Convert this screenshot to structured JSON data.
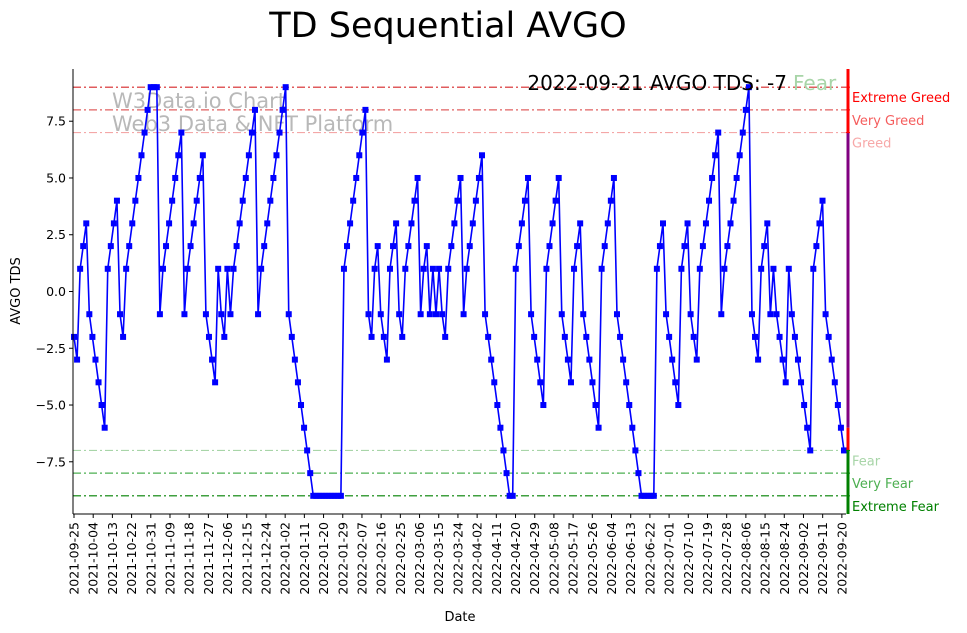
{
  "chart_data": {
    "type": "line",
    "title": "TD Sequential AVGO",
    "xlabel": "Date",
    "ylabel": "AVGO TDS",
    "ylim": [
      -9.8,
      9.8
    ],
    "yticks": [
      -7.5,
      -5.0,
      -2.5,
      0.0,
      2.5,
      5.0,
      7.5
    ],
    "ytick_labels": [
      "−7.5",
      "−5.0",
      "−2.5",
      "0.0",
      "2.5",
      "5.0",
      "7.5"
    ],
    "x_start": "2021-09-25",
    "x_end": "2022-09-21",
    "xtick_labels": [
      "2021-09-25",
      "2021-10-04",
      "2021-10-13",
      "2021-10-22",
      "2021-10-31",
      "2021-11-09",
      "2021-11-18",
      "2021-11-27",
      "2021-12-06",
      "2021-12-15",
      "2021-12-24",
      "2022-01-02",
      "2022-01-11",
      "2022-01-20",
      "2022-01-29",
      "2022-02-07",
      "2022-02-16",
      "2022-02-25",
      "2022-03-06",
      "2022-03-15",
      "2022-03-24",
      "2022-04-02",
      "2022-04-11",
      "2022-04-20",
      "2022-04-29",
      "2022-05-08",
      "2022-05-17",
      "2022-05-26",
      "2022-06-04",
      "2022-06-13",
      "2022-06-22",
      "2022-07-01",
      "2022-07-10",
      "2022-07-19",
      "2022-07-28",
      "2022-08-06",
      "2022-08-15",
      "2022-08-24",
      "2022-09-02",
      "2022-09-11",
      "2022-09-20"
    ],
    "series": [
      {
        "color": "#0000ff",
        "marker": "square",
        "values": [
          -2,
          -3,
          1,
          2,
          3,
          -1,
          -2,
          -3,
          -4,
          -5,
          -6,
          1,
          2,
          3,
          4,
          -1,
          -2,
          1,
          2,
          3,
          4,
          5,
          6,
          7,
          8,
          9,
          9,
          9,
          -1,
          1,
          2,
          3,
          4,
          5,
          6,
          7,
          -1,
          1,
          2,
          3,
          4,
          5,
          6,
          -1,
          -2,
          -3,
          -4,
          1,
          -1,
          -2,
          1,
          -1,
          1,
          2,
          3,
          4,
          5,
          6,
          7,
          8,
          -1,
          1,
          2,
          3,
          4,
          5,
          6,
          7,
          8,
          9,
          -1,
          -2,
          -3,
          -4,
          -5,
          -6,
          -7,
          -8,
          -9,
          -9,
          -9,
          -9,
          -9,
          -9,
          -9,
          -9,
          -9,
          -9,
          1,
          2,
          3,
          4,
          5,
          6,
          7,
          8,
          -1,
          -2,
          1,
          2,
          -1,
          -2,
          -3,
          1,
          2,
          3,
          -1,
          -2,
          1,
          2,
          3,
          4,
          5,
          -1,
          1,
          2,
          -1,
          1,
          -1,
          1,
          -1,
          -2,
          1,
          2,
          3,
          4,
          5,
          -1,
          1,
          2,
          3,
          4,
          5,
          6,
          -1,
          -2,
          -3,
          -4,
          -5,
          -6,
          -7,
          -8,
          -9,
          -9,
          1,
          2,
          3,
          4,
          5,
          -1,
          -2,
          -3,
          -4,
          -5,
          1,
          2,
          3,
          4,
          5,
          -1,
          -2,
          -3,
          -4,
          1,
          2,
          3,
          -1,
          -2,
          -3,
          -4,
          -5,
          -6,
          1,
          2,
          3,
          4,
          5,
          -1,
          -2,
          -3,
          -4,
          -5,
          -6,
          -7,
          -8,
          -9,
          -9,
          -9,
          -9,
          -9,
          1,
          2,
          3,
          -1,
          -2,
          -3,
          -4,
          -5,
          1,
          2,
          3,
          -1,
          -2,
          -3,
          1,
          2,
          3,
          4,
          5,
          6,
          7,
          -1,
          1,
          2,
          3,
          4,
          5,
          6,
          7,
          8,
          9,
          -1,
          -2,
          -3,
          1,
          2,
          3,
          -1,
          1,
          -1,
          -2,
          -3,
          -4,
          1,
          -1,
          -2,
          -3,
          -4,
          -5,
          -6,
          -7,
          1,
          2,
          3,
          4,
          -1,
          -2,
          -3,
          -4,
          -5,
          -6,
          -7
        ]
      }
    ],
    "thresholds": [
      {
        "label": "Extreme Greed",
        "value": 9,
        "color": "#ff0000",
        "line_color": "#d62728"
      },
      {
        "label": "Very Greed",
        "value": 8,
        "color": "#f55d5d",
        "line_color": "#e06060"
      },
      {
        "label": "Greed",
        "value": 7,
        "color": "#f7a8a8",
        "line_color": "#f4a7a7"
      },
      {
        "label": "Fear",
        "value": -7,
        "color": "#a8d5a8",
        "line_color": "#a8d5a8"
      },
      {
        "label": "Very Fear",
        "value": -8,
        "color": "#4caf50",
        "line_color": "#4caf50"
      },
      {
        "label": "Extreme Fear",
        "value": -9,
        "color": "#008000",
        "line_color": "#008000"
      }
    ],
    "annotation": {
      "text": "2022-09-21 AVGO TDS: -7",
      "sentiment": "Fear",
      "sentiment_color": "#a8d5a8"
    },
    "watermark": [
      "W3Data.io Chart",
      "Web3 Data & NFT Platform"
    ],
    "gauge_colors": {
      "top": "#ff0000",
      "middle": "#800080",
      "bottom": "#008000"
    }
  }
}
